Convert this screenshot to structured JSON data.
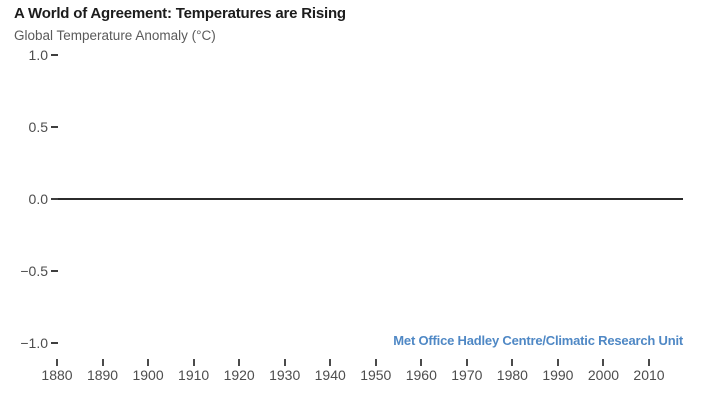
{
  "header": {
    "title": "A World of Agreement: Temperatures are Rising",
    "subtitle": "Global Temperature Anomaly (°C)"
  },
  "attribution": {
    "text": "Met Office Hadley Centre/Climatic Research Unit",
    "color": "#4f88c5"
  },
  "colors": {
    "title": "#1c1c1c",
    "subtitle": "#5a5a5a",
    "tick_label": "#4d4d4d",
    "baseline": "#2b2b2b",
    "background": "#ffffff"
  },
  "chart_data": {
    "type": "line",
    "title": "A World of Agreement: Temperatures are Rising",
    "subtitle": "Global Temperature Anomaly (°C)",
    "xlabel": "",
    "ylabel": "Global Temperature Anomaly (°C)",
    "x_ticks": [
      1880,
      1890,
      1900,
      1910,
      1920,
      1930,
      1940,
      1950,
      1960,
      1970,
      1980,
      1990,
      2000,
      2010
    ],
    "x_tick_labels": [
      "1880",
      "1890",
      "1900",
      "1910",
      "1920",
      "1930",
      "1940",
      "1950",
      "1960",
      "1970",
      "1980",
      "1990",
      "2000",
      "2010"
    ],
    "y_ticks": [
      1.0,
      0.5,
      0.0,
      -0.5,
      -1.0
    ],
    "y_tick_labels": [
      "1.0",
      "0.5",
      "0.0",
      "−0.5",
      "−1.0"
    ],
    "xlim": [
      1878,
      2018
    ],
    "ylim": [
      -1.15,
      1.05
    ],
    "grid": false,
    "legend_position": "none",
    "baseline": 0.0,
    "series": [],
    "annotations": [
      {
        "text": "Met Office Hadley Centre/Climatic Research Unit",
        "color": "#4f88c5",
        "position": "bottom-right"
      }
    ]
  }
}
